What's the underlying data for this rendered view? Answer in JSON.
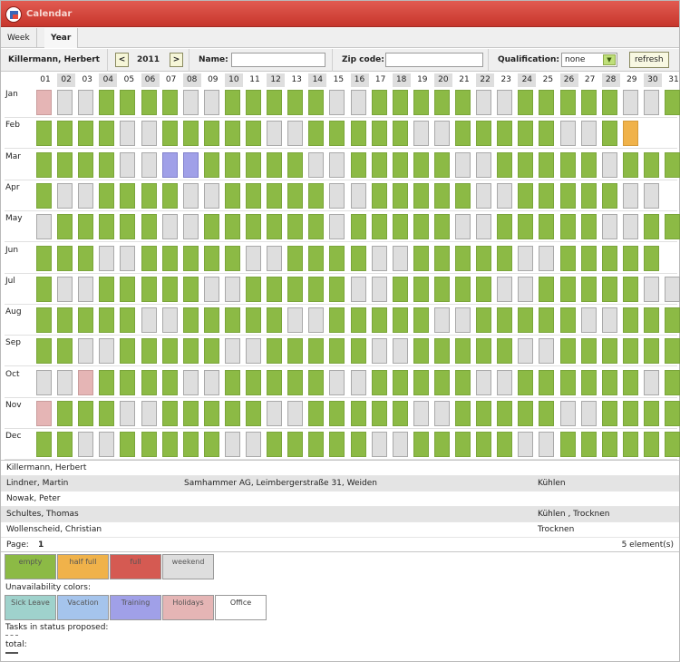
{
  "window": {
    "title": "Calendar"
  },
  "tabs": [
    {
      "label": "Week"
    },
    {
      "label": "Year"
    }
  ],
  "toolbar": {
    "person": "Killermann, Herbert",
    "prev": "<",
    "year": "2011",
    "next": ">",
    "name_label": "Name:",
    "name_value": "",
    "zip_label": "Zip code:",
    "zip_value": "",
    "qual_label": "Qualification:",
    "qual_value": "none",
    "refresh_label": "refresh"
  },
  "days": [
    "01",
    "02",
    "03",
    "04",
    "05",
    "06",
    "07",
    "08",
    "09",
    "10",
    "11",
    "12",
    "13",
    "14",
    "15",
    "16",
    "17",
    "18",
    "19",
    "20",
    "21",
    "22",
    "23",
    "24",
    "25",
    "26",
    "27",
    "28",
    "29",
    "30",
    "31"
  ],
  "months": [
    {
      "label": "Jan",
      "cells": "heeggggeegggggeegggggeegggggeeg"
    },
    {
      "label": "Feb",
      "cells": "ggggeegggggeegggggeegggggeego"
    },
    {
      "label": "Mar",
      "cells": "ggggeettgggggeegggggeegggggeggg"
    },
    {
      "label": "Apr",
      "cells": "geeggggeegggggeegggggeegggggee"
    },
    {
      "label": "May",
      "cells": "egggggeeggggggegggggeegggggeegg"
    },
    {
      "label": "Jun",
      "cells": "gggeegggggeeggggeegggggeeggggg"
    },
    {
      "label": "Jul",
      "cells": "geegggggeegggggeegggggeegggggee"
    },
    {
      "label": "Aug",
      "cells": "gggggeegggggeegggggeegggggeeggg"
    },
    {
      "label": "Sep",
      "cells": "ggeegggggeegggggeegggggeegggggg"
    },
    {
      "label": "Oct",
      "cells": "eehggggeegggggeegggggeeggggggeg"
    },
    {
      "label": "Nov",
      "cells": "hgggeegggggeegggggeegggggeegggg"
    },
    {
      "label": "Dec",
      "cells": "ggeegggggeegggggeegggggeegggggg"
    }
  ],
  "persons": [
    {
      "name": "Killermann, Herbert",
      "address": "",
      "qualification": ""
    },
    {
      "name": "Lindner, Martin",
      "address": "Samhammer AG, Leimbergerstraße 31, Weiden",
      "qualification": "Kühlen"
    },
    {
      "name": "Nowak, Peter",
      "address": "",
      "qualification": ""
    },
    {
      "name": "Schultes, Thomas",
      "address": "",
      "qualification": "Kühlen , Trocknen"
    },
    {
      "name": "Wollenscheid, Christian",
      "address": "",
      "qualification": "Trocknen"
    }
  ],
  "pager": {
    "label": "Page:",
    "page": "1",
    "count": "5 element(s)"
  },
  "legend": {
    "fill": [
      {
        "label": "empty",
        "color": "#8cba45"
      },
      {
        "label": "half full",
        "color": "#f0b24a"
      },
      {
        "label": "full",
        "color": "#d55a52"
      },
      {
        "label": "weekend",
        "color": "#dedede"
      }
    ],
    "unavail_title": "Unavailability colors:",
    "unavail": [
      {
        "label": "Sick Leave",
        "color": "#9fd2cc"
      },
      {
        "label": "Vacation",
        "color": "#a5c4ec"
      },
      {
        "label": "Training",
        "color": "#a0a0e8"
      },
      {
        "label": "Holidays",
        "color": "#e5b5b5"
      },
      {
        "label": "Office",
        "color": "#ffffff"
      }
    ],
    "tasks_label": "Tasks in status proposed:",
    "total_label": "total:"
  }
}
